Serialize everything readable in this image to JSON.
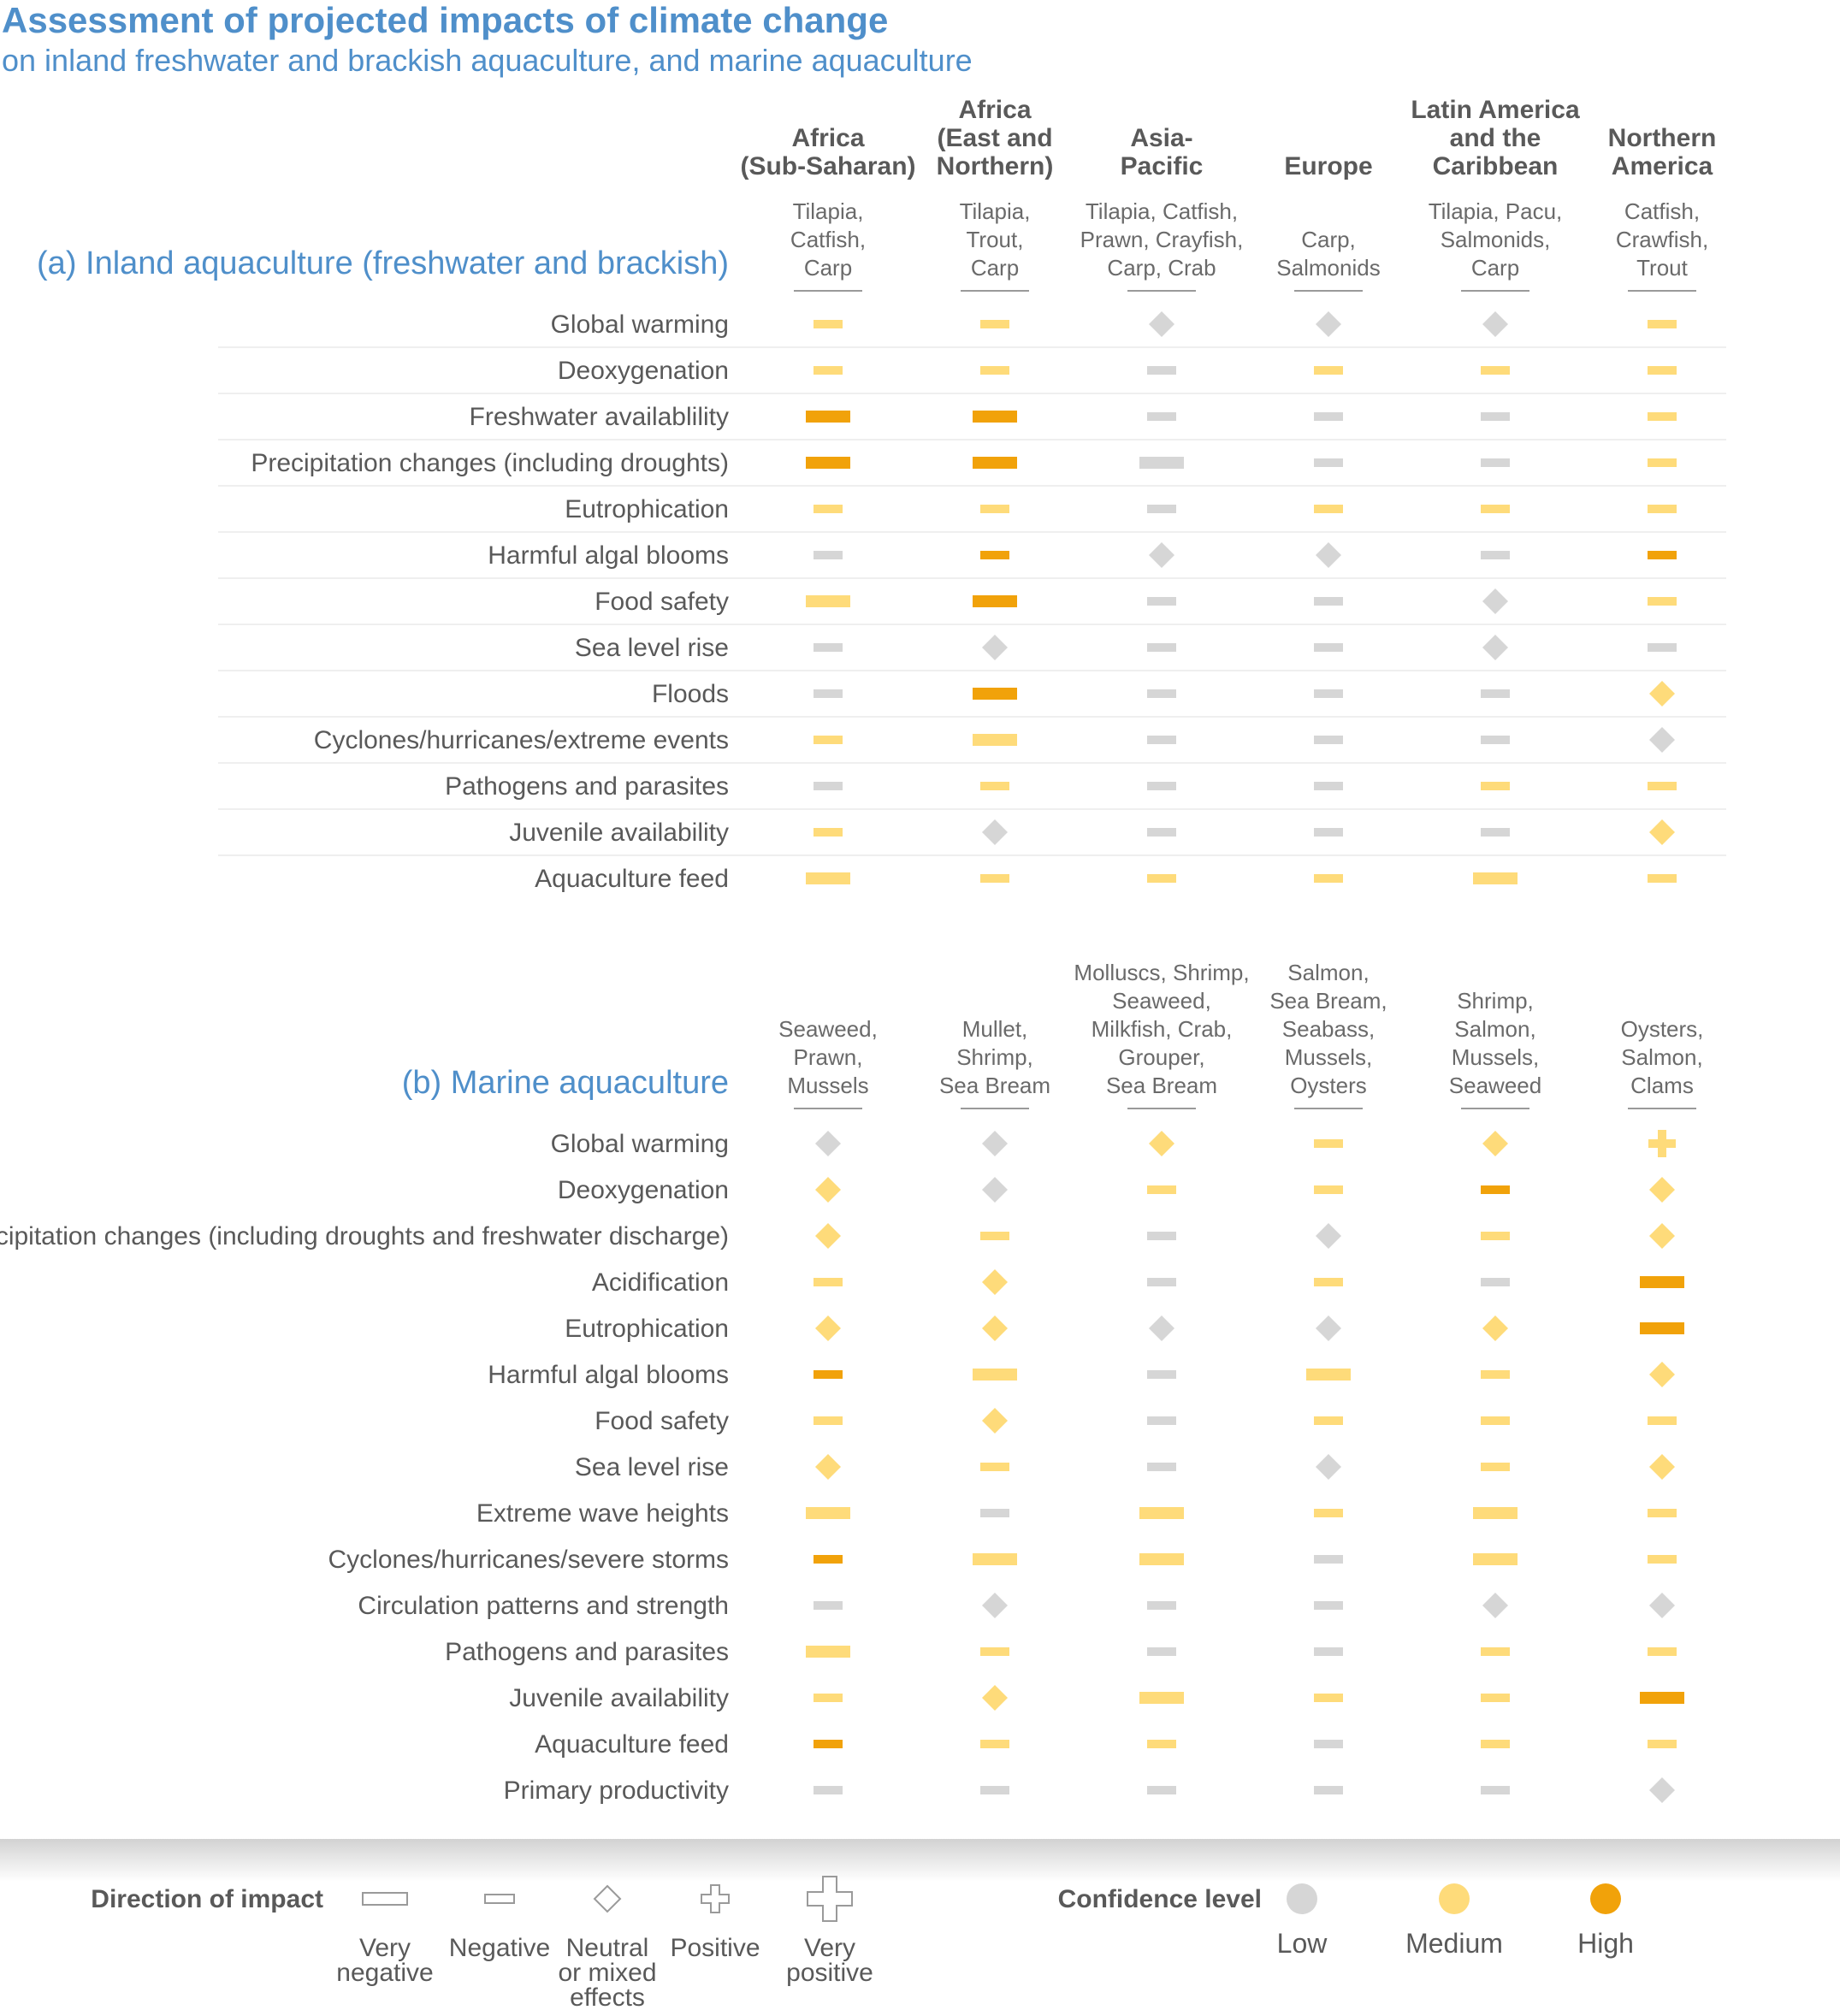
{
  "title": "Assessment of projected impacts of climate change",
  "subtitle": "on inland freshwater and brackish aquaculture, and marine aquaculture",
  "colors": {
    "low": "#d6d6d6",
    "medium": "#fedb7a",
    "high": "#f1a20a",
    "heading": "#4f8fca",
    "text": "#595959"
  },
  "regions": [
    [
      "Africa",
      "(Sub-Saharan)"
    ],
    [
      "Africa",
      "(East and",
      "Northern)"
    ],
    [
      "Asia-",
      "Pacific"
    ],
    [
      "Europe"
    ],
    [
      "Latin America",
      "and the",
      "Caribbean"
    ],
    [
      "Northern",
      "America"
    ]
  ],
  "inland": {
    "heading": "(a) Inland aquaculture (freshwater and brackish)",
    "species": [
      [
        "Tilapia,",
        "Catfish,",
        "Carp"
      ],
      [
        "Tilapia,",
        "Trout,",
        "Carp"
      ],
      [
        "Tilapia, Catfish,",
        "Prawn, Crayfish,",
        "Carp, Crab"
      ],
      [
        "Carp,",
        "Salmonids"
      ],
      [
        "Tilapia, Pacu,",
        "Salmonids,",
        "Carp"
      ],
      [
        "Catfish,",
        "Crawfish,",
        "Trout"
      ]
    ],
    "rows": [
      {
        "label": "Global warming",
        "cells": [
          [
            "neg",
            "medium"
          ],
          [
            "neg",
            "medium"
          ],
          [
            "neutral",
            "low"
          ],
          [
            "neutral",
            "low"
          ],
          [
            "neutral",
            "low"
          ],
          [
            "neg",
            "medium"
          ]
        ]
      },
      {
        "label": "Deoxygenation",
        "cells": [
          [
            "neg",
            "medium"
          ],
          [
            "neg",
            "medium"
          ],
          [
            "neg",
            "low"
          ],
          [
            "neg",
            "medium"
          ],
          [
            "neg",
            "medium"
          ],
          [
            "neg",
            "medium"
          ]
        ]
      },
      {
        "label": "Freshwater availablility",
        "cells": [
          [
            "vneg",
            "high"
          ],
          [
            "vneg",
            "high"
          ],
          [
            "neg",
            "low"
          ],
          [
            "neg",
            "low"
          ],
          [
            "neg",
            "low"
          ],
          [
            "neg",
            "medium"
          ]
        ]
      },
      {
        "label": "Precipitation changes (including droughts)",
        "cells": [
          [
            "vneg",
            "high"
          ],
          [
            "vneg",
            "high"
          ],
          [
            "vneg",
            "low"
          ],
          [
            "neg",
            "low"
          ],
          [
            "neg",
            "low"
          ],
          [
            "neg",
            "medium"
          ]
        ]
      },
      {
        "label": "Eutrophication",
        "cells": [
          [
            "neg",
            "medium"
          ],
          [
            "neg",
            "medium"
          ],
          [
            "neg",
            "low"
          ],
          [
            "neg",
            "medium"
          ],
          [
            "neg",
            "medium"
          ],
          [
            "neg",
            "medium"
          ]
        ]
      },
      {
        "label": "Harmful algal blooms",
        "cells": [
          [
            "neg",
            "low"
          ],
          [
            "neg",
            "high"
          ],
          [
            "neutral",
            "low"
          ],
          [
            "neutral",
            "low"
          ],
          [
            "neg",
            "low"
          ],
          [
            "neg",
            "high"
          ]
        ]
      },
      {
        "label": "Food safety",
        "cells": [
          [
            "vneg",
            "medium"
          ],
          [
            "vneg",
            "high"
          ],
          [
            "neg",
            "low"
          ],
          [
            "neg",
            "low"
          ],
          [
            "neutral",
            "low"
          ],
          [
            "neg",
            "medium"
          ]
        ]
      },
      {
        "label": "Sea level rise",
        "cells": [
          [
            "neg",
            "low"
          ],
          [
            "neutral",
            "low"
          ],
          [
            "neg",
            "low"
          ],
          [
            "neg",
            "low"
          ],
          [
            "neutral",
            "low"
          ],
          [
            "neg",
            "low"
          ]
        ]
      },
      {
        "label": "Floods",
        "cells": [
          [
            "neg",
            "low"
          ],
          [
            "vneg",
            "high"
          ],
          [
            "neg",
            "low"
          ],
          [
            "neg",
            "low"
          ],
          [
            "neg",
            "low"
          ],
          [
            "neutral",
            "medium"
          ]
        ]
      },
      {
        "label": "Cyclones/hurricanes/extreme events",
        "cells": [
          [
            "neg",
            "medium"
          ],
          [
            "vneg",
            "medium"
          ],
          [
            "neg",
            "low"
          ],
          [
            "neg",
            "low"
          ],
          [
            "neg",
            "low"
          ],
          [
            "neutral",
            "low"
          ]
        ]
      },
      {
        "label": "Pathogens and parasites",
        "cells": [
          [
            "neg",
            "low"
          ],
          [
            "neg",
            "medium"
          ],
          [
            "neg",
            "low"
          ],
          [
            "neg",
            "low"
          ],
          [
            "neg",
            "medium"
          ],
          [
            "neg",
            "medium"
          ]
        ]
      },
      {
        "label": "Juvenile availability",
        "cells": [
          [
            "neg",
            "medium"
          ],
          [
            "neutral",
            "low"
          ],
          [
            "neg",
            "low"
          ],
          [
            "neg",
            "low"
          ],
          [
            "neg",
            "low"
          ],
          [
            "neutral",
            "medium"
          ]
        ]
      },
      {
        "label": "Aquaculture feed",
        "cells": [
          [
            "vneg",
            "medium"
          ],
          [
            "neg",
            "medium"
          ],
          [
            "neg",
            "medium"
          ],
          [
            "neg",
            "medium"
          ],
          [
            "vneg",
            "medium"
          ],
          [
            "neg",
            "medium"
          ]
        ]
      }
    ]
  },
  "marine": {
    "heading": "(b) Marine aquaculture",
    "species": [
      [
        "Seaweed,",
        "Prawn,",
        "Mussels"
      ],
      [
        "Mullet,",
        "Shrimp,",
        "Sea Bream"
      ],
      [
        "Molluscs, Shrimp,",
        "Seaweed,",
        "Milkfish, Crab,",
        "Grouper,",
        "Sea Bream"
      ],
      [
        "Salmon,",
        "Sea Bream,",
        "Seabass,",
        "Mussels,",
        "Oysters"
      ],
      [
        "Shrimp,",
        "Salmon,",
        "Mussels,",
        "Seaweed"
      ],
      [
        "Oysters,",
        "Salmon,",
        "Clams"
      ]
    ],
    "rows": [
      {
        "label": "Global warming",
        "cells": [
          [
            "neutral",
            "low"
          ],
          [
            "neutral",
            "low"
          ],
          [
            "neutral",
            "medium"
          ],
          [
            "neg",
            "medium"
          ],
          [
            "neutral",
            "medium"
          ],
          [
            "pos",
            "medium"
          ]
        ]
      },
      {
        "label": "Deoxygenation",
        "cells": [
          [
            "neutral",
            "medium"
          ],
          [
            "neutral",
            "low"
          ],
          [
            "neg",
            "medium"
          ],
          [
            "neg",
            "medium"
          ],
          [
            "neg",
            "high"
          ],
          [
            "neutral",
            "medium"
          ]
        ]
      },
      {
        "label": "Precipitation changes (including droughts and freshwater discharge)",
        "cells": [
          [
            "neutral",
            "medium"
          ],
          [
            "neg",
            "medium"
          ],
          [
            "neg",
            "low"
          ],
          [
            "neutral",
            "low"
          ],
          [
            "neg",
            "medium"
          ],
          [
            "neutral",
            "medium"
          ]
        ]
      },
      {
        "label": "Acidification",
        "cells": [
          [
            "neg",
            "medium"
          ],
          [
            "neutral",
            "medium"
          ],
          [
            "neg",
            "low"
          ],
          [
            "neg",
            "medium"
          ],
          [
            "neg",
            "low"
          ],
          [
            "vneg",
            "high"
          ]
        ]
      },
      {
        "label": "Eutrophication",
        "cells": [
          [
            "neutral",
            "medium"
          ],
          [
            "neutral",
            "medium"
          ],
          [
            "neutral",
            "low"
          ],
          [
            "neutral",
            "low"
          ],
          [
            "neutral",
            "medium"
          ],
          [
            "vneg",
            "high"
          ]
        ]
      },
      {
        "label": "Harmful algal blooms",
        "cells": [
          [
            "neg",
            "high"
          ],
          [
            "vneg",
            "medium"
          ],
          [
            "neg",
            "low"
          ],
          [
            "vneg",
            "medium"
          ],
          [
            "neg",
            "medium"
          ],
          [
            "neutral",
            "medium"
          ]
        ]
      },
      {
        "label": "Food safety",
        "cells": [
          [
            "neg",
            "medium"
          ],
          [
            "neutral",
            "medium"
          ],
          [
            "neg",
            "low"
          ],
          [
            "neg",
            "medium"
          ],
          [
            "neg",
            "medium"
          ],
          [
            "neg",
            "medium"
          ]
        ]
      },
      {
        "label": "Sea level rise",
        "cells": [
          [
            "neutral",
            "medium"
          ],
          [
            "neg",
            "medium"
          ],
          [
            "neg",
            "low"
          ],
          [
            "neutral",
            "low"
          ],
          [
            "neg",
            "medium"
          ],
          [
            "neutral",
            "medium"
          ]
        ]
      },
      {
        "label": "Extreme wave heights",
        "cells": [
          [
            "vneg",
            "medium"
          ],
          [
            "neg",
            "low"
          ],
          [
            "vneg",
            "medium"
          ],
          [
            "neg",
            "medium"
          ],
          [
            "vneg",
            "medium"
          ],
          [
            "neg",
            "medium"
          ]
        ]
      },
      {
        "label": "Cyclones/hurricanes/severe storms",
        "cells": [
          [
            "neg",
            "high"
          ],
          [
            "vneg",
            "medium"
          ],
          [
            "vneg",
            "medium"
          ],
          [
            "neg",
            "low"
          ],
          [
            "vneg",
            "medium"
          ],
          [
            "neg",
            "medium"
          ]
        ]
      },
      {
        "label": "Circulation patterns and strength",
        "cells": [
          [
            "neg",
            "low"
          ],
          [
            "neutral",
            "low"
          ],
          [
            "neg",
            "low"
          ],
          [
            "neg",
            "low"
          ],
          [
            "neutral",
            "low"
          ],
          [
            "neutral",
            "low"
          ]
        ]
      },
      {
        "label": "Pathogens and parasites",
        "cells": [
          [
            "vneg",
            "medium"
          ],
          [
            "neg",
            "medium"
          ],
          [
            "neg",
            "low"
          ],
          [
            "neg",
            "low"
          ],
          [
            "neg",
            "medium"
          ],
          [
            "neg",
            "medium"
          ]
        ]
      },
      {
        "label": "Juvenile availability",
        "cells": [
          [
            "neg",
            "medium"
          ],
          [
            "neutral",
            "medium"
          ],
          [
            "vneg",
            "medium"
          ],
          [
            "neg",
            "medium"
          ],
          [
            "neg",
            "medium"
          ],
          [
            "vneg",
            "high"
          ]
        ]
      },
      {
        "label": "Aquaculture feed",
        "cells": [
          [
            "neg",
            "high"
          ],
          [
            "neg",
            "medium"
          ],
          [
            "neg",
            "medium"
          ],
          [
            "neg",
            "low"
          ],
          [
            "neg",
            "medium"
          ],
          [
            "neg",
            "medium"
          ]
        ]
      },
      {
        "label": "Primary productivity",
        "cells": [
          [
            "neg",
            "low"
          ],
          [
            "neg",
            "low"
          ],
          [
            "neg",
            "low"
          ],
          [
            "neg",
            "low"
          ],
          [
            "neg",
            "low"
          ],
          [
            "neutral",
            "low"
          ]
        ]
      }
    ]
  },
  "legend": {
    "direction_title": "Direction of impact",
    "direction_items": [
      {
        "key": "vneg",
        "label": [
          "Very",
          "negative"
        ]
      },
      {
        "key": "neg",
        "label": [
          "Negative"
        ]
      },
      {
        "key": "neutral",
        "label": [
          "Neutral",
          "or mixed",
          "effects"
        ]
      },
      {
        "key": "pos",
        "label": [
          "Positive"
        ]
      },
      {
        "key": "vpos",
        "label": [
          "Very",
          "positive"
        ]
      }
    ],
    "confidence_title": "Confidence level",
    "confidence_items": [
      {
        "key": "low",
        "label": "Low"
      },
      {
        "key": "medium",
        "label": "Medium"
      },
      {
        "key": "high",
        "label": "High"
      }
    ]
  }
}
